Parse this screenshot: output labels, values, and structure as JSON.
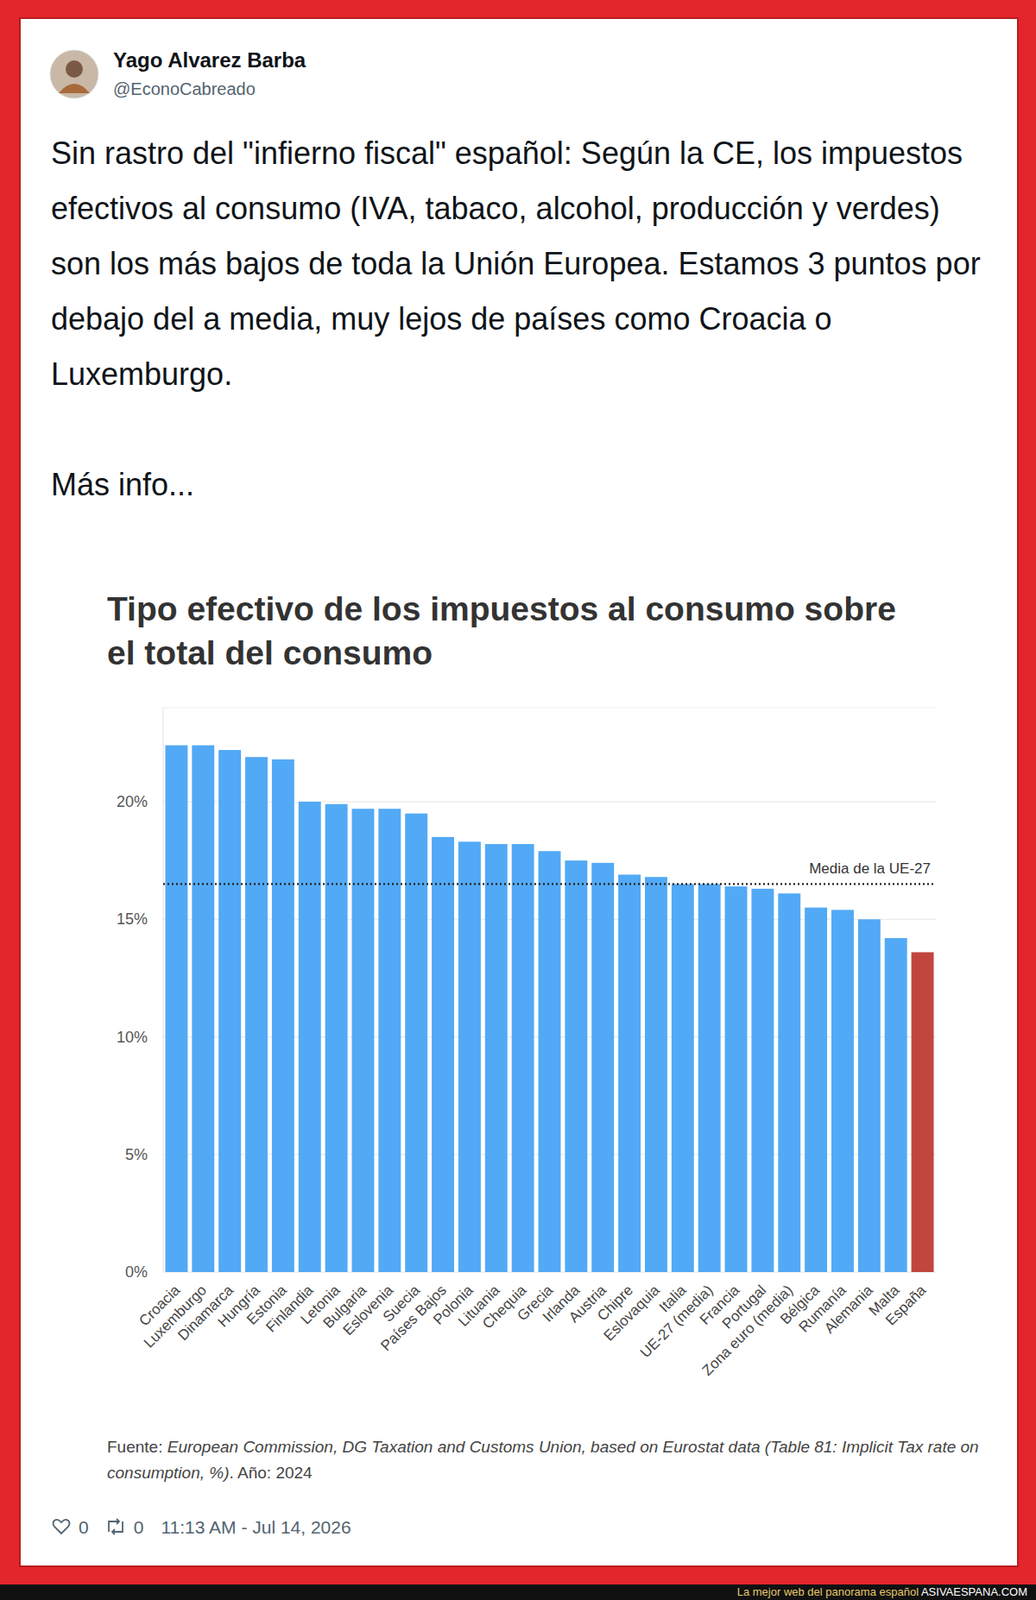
{
  "tweet": {
    "author": "Yago Alvarez Barba",
    "handle": "@EconoCabreado",
    "text": "Sin rastro del \"infierno fiscal\" español: Según la CE, los impuestos efectivos al consumo (IVA, tabaco, alcohol, producción y verdes) son los más bajos de toda la Unión Europea. Estamos 3 puntos por debajo del a media, muy lejos de países como Croacia o Luxemburgo.",
    "more": "Más info...",
    "likes": 0,
    "retweets": 0,
    "timestamp": "11:13 AM - Jul 14, 2026"
  },
  "chart_data": {
    "type": "bar",
    "title": "Tipo efectivo de los impuestos al consumo sobre el total del consumo",
    "categories": [
      "Croacia",
      "Luxemburgo",
      "Dinamarca",
      "Hungría",
      "Estonia",
      "Finlandia",
      "Letonia",
      "Bulgaria",
      "Eslovenia",
      "Suecia",
      "Países Bajos",
      "Polonia",
      "Lituania",
      "Chequia",
      "Grecia",
      "Irlanda",
      "Austria",
      "Chipre",
      "Eslovaquia",
      "Italia",
      "UE-27 (media)",
      "Francia",
      "Portugal",
      "Zona euro (media)",
      "Bélgica",
      "Rumanía",
      "Alemania",
      "Malta",
      "España"
    ],
    "values": [
      22.4,
      22.4,
      22.2,
      21.9,
      21.8,
      20.0,
      19.9,
      19.7,
      19.7,
      19.5,
      18.5,
      18.3,
      18.2,
      18.2,
      17.9,
      17.5,
      17.4,
      16.9,
      16.8,
      16.5,
      16.5,
      16.4,
      16.3,
      16.1,
      15.5,
      15.4,
      15.0,
      14.2,
      13.6
    ],
    "colors": [
      "#52a9f5",
      "#52a9f5",
      "#52a9f5",
      "#52a9f5",
      "#52a9f5",
      "#52a9f5",
      "#52a9f5",
      "#52a9f5",
      "#52a9f5",
      "#52a9f5",
      "#52a9f5",
      "#52a9f5",
      "#52a9f5",
      "#52a9f5",
      "#52a9f5",
      "#52a9f5",
      "#52a9f5",
      "#52a9f5",
      "#52a9f5",
      "#52a9f5",
      "#52a9f5",
      "#52a9f5",
      "#52a9f5",
      "#52a9f5",
      "#52a9f5",
      "#52a9f5",
      "#52a9f5",
      "#52a9f5",
      "#c0463f"
    ],
    "ylim": [
      0,
      24
    ],
    "yticks": [
      {
        "value": 0,
        "label": "0%"
      },
      {
        "value": 5,
        "label": "5%"
      },
      {
        "value": 10,
        "label": "10%"
      },
      {
        "value": 15,
        "label": "15%"
      },
      {
        "value": 20,
        "label": "20%"
      }
    ],
    "grid": true,
    "reference_line": {
      "value": 16.5,
      "label": "Media de la UE-27",
      "line_style": "dotted"
    },
    "source": {
      "prefix": "Fuente:",
      "text": "European Commission, DG Taxation and Customs Union, based on Eurostat data (Table 81: Implicit Tax rate on consumption, %)",
      "suffix": ". Año: 2024"
    }
  },
  "site": {
    "tagline": "La mejor web del panorama español",
    "name": "ASIVAESPANA.COM"
  }
}
